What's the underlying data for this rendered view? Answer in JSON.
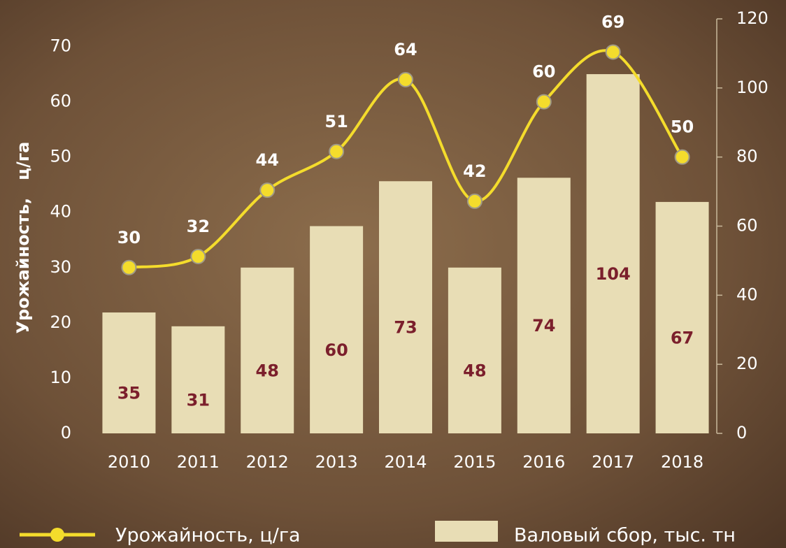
{
  "chart_data": {
    "type": "combo",
    "y_label": "Урожайность,   ц/га",
    "categories": [
      "2010",
      "2011",
      "2012",
      "2013",
      "2014",
      "2015",
      "2016",
      "2017",
      "2018"
    ],
    "series": [
      {
        "name": "Урожайность, ц/га",
        "type": "line",
        "color": "#f4dc2c",
        "values": [
          30,
          32,
          44,
          51,
          64,
          42,
          60,
          69,
          50
        ]
      },
      {
        "name": "Валовый сбор, тыс. тн",
        "type": "bar",
        "axis": "y2",
        "color": "#e8ddb5",
        "values": [
          35,
          31,
          48,
          60,
          73,
          48,
          74,
          104,
          67
        ]
      }
    ],
    "ylim": [
      0,
      75
    ],
    "yticks": [
      0,
      10,
      20,
      30,
      40,
      50,
      60,
      70
    ],
    "y2lim": [
      0,
      120
    ],
    "y2ticks": [
      0,
      20,
      40,
      60,
      80,
      100,
      120
    ],
    "legend": "bottom"
  }
}
